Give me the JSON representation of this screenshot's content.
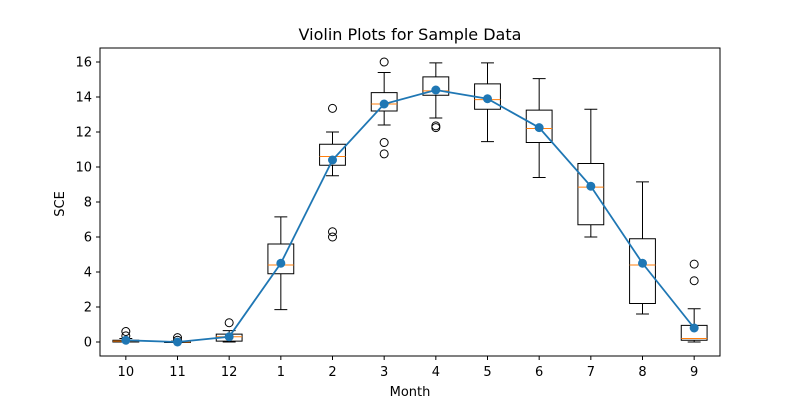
{
  "chart_data": {
    "type": "box",
    "title": "Violin Plots for Sample Data",
    "xlabel": "Month",
    "ylabel": "SCE",
    "categories": [
      "10",
      "11",
      "12",
      "1",
      "2",
      "3",
      "4",
      "5",
      "6",
      "7",
      "8",
      "9"
    ],
    "ylim": [
      -0.8,
      16.8
    ],
    "yticks": [
      0,
      2,
      4,
      6,
      8,
      10,
      12,
      14,
      16
    ],
    "grid": false,
    "colors": {
      "box": "#000000",
      "median": "#ff7f0e",
      "mean_line": "#1f77b4"
    },
    "boxes": [
      {
        "whisker_low": 0.0,
        "q1": 0.0,
        "median": 0.05,
        "q3": 0.1,
        "whisker_high": 0.2,
        "outliers": [
          0.35,
          0.6
        ]
      },
      {
        "whisker_low": 0.0,
        "q1": 0.0,
        "median": 0.0,
        "q3": 0.0,
        "whisker_high": 0.05,
        "outliers": [
          0.1,
          0.25
        ]
      },
      {
        "whisker_low": 0.0,
        "q1": 0.05,
        "median": 0.3,
        "q3": 0.45,
        "whisker_high": 0.65,
        "outliers": [
          1.1
        ]
      },
      {
        "whisker_low": 1.85,
        "q1": 3.9,
        "median": 4.4,
        "q3": 5.6,
        "whisker_high": 7.15,
        "outliers": []
      },
      {
        "whisker_low": 9.5,
        "q1": 10.1,
        "median": 10.6,
        "q3": 11.3,
        "whisker_high": 12.0,
        "outliers": [
          6.0,
          6.3,
          13.35
        ]
      },
      {
        "whisker_low": 12.4,
        "q1": 13.2,
        "median": 13.6,
        "q3": 14.25,
        "whisker_high": 15.4,
        "outliers": [
          10.75,
          11.4,
          16.0
        ]
      },
      {
        "whisker_low": 12.8,
        "q1": 14.1,
        "median": 14.35,
        "q3": 15.15,
        "whisker_high": 15.95,
        "outliers": [
          12.25,
          12.35
        ]
      },
      {
        "whisker_low": 11.45,
        "q1": 13.3,
        "median": 13.85,
        "q3": 14.75,
        "whisker_high": 15.95,
        "outliers": []
      },
      {
        "whisker_low": 9.4,
        "q1": 11.4,
        "median": 12.2,
        "q3": 13.25,
        "whisker_high": 15.05,
        "outliers": []
      },
      {
        "whisker_low": 6.0,
        "q1": 6.7,
        "median": 8.85,
        "q3": 10.2,
        "whisker_high": 13.3,
        "outliers": []
      },
      {
        "whisker_low": 1.6,
        "q1": 2.2,
        "median": 4.4,
        "q3": 5.9,
        "whisker_high": 9.15,
        "outliers": []
      },
      {
        "whisker_low": 0.0,
        "q1": 0.1,
        "median": 0.2,
        "q3": 0.95,
        "whisker_high": 1.9,
        "outliers": [
          3.5,
          4.45
        ]
      }
    ],
    "series": [
      {
        "values": [
          0.1,
          0.0,
          0.3,
          4.5,
          10.4,
          13.6,
          14.4,
          13.9,
          12.25,
          8.9,
          4.5,
          0.8
        ]
      }
    ]
  }
}
